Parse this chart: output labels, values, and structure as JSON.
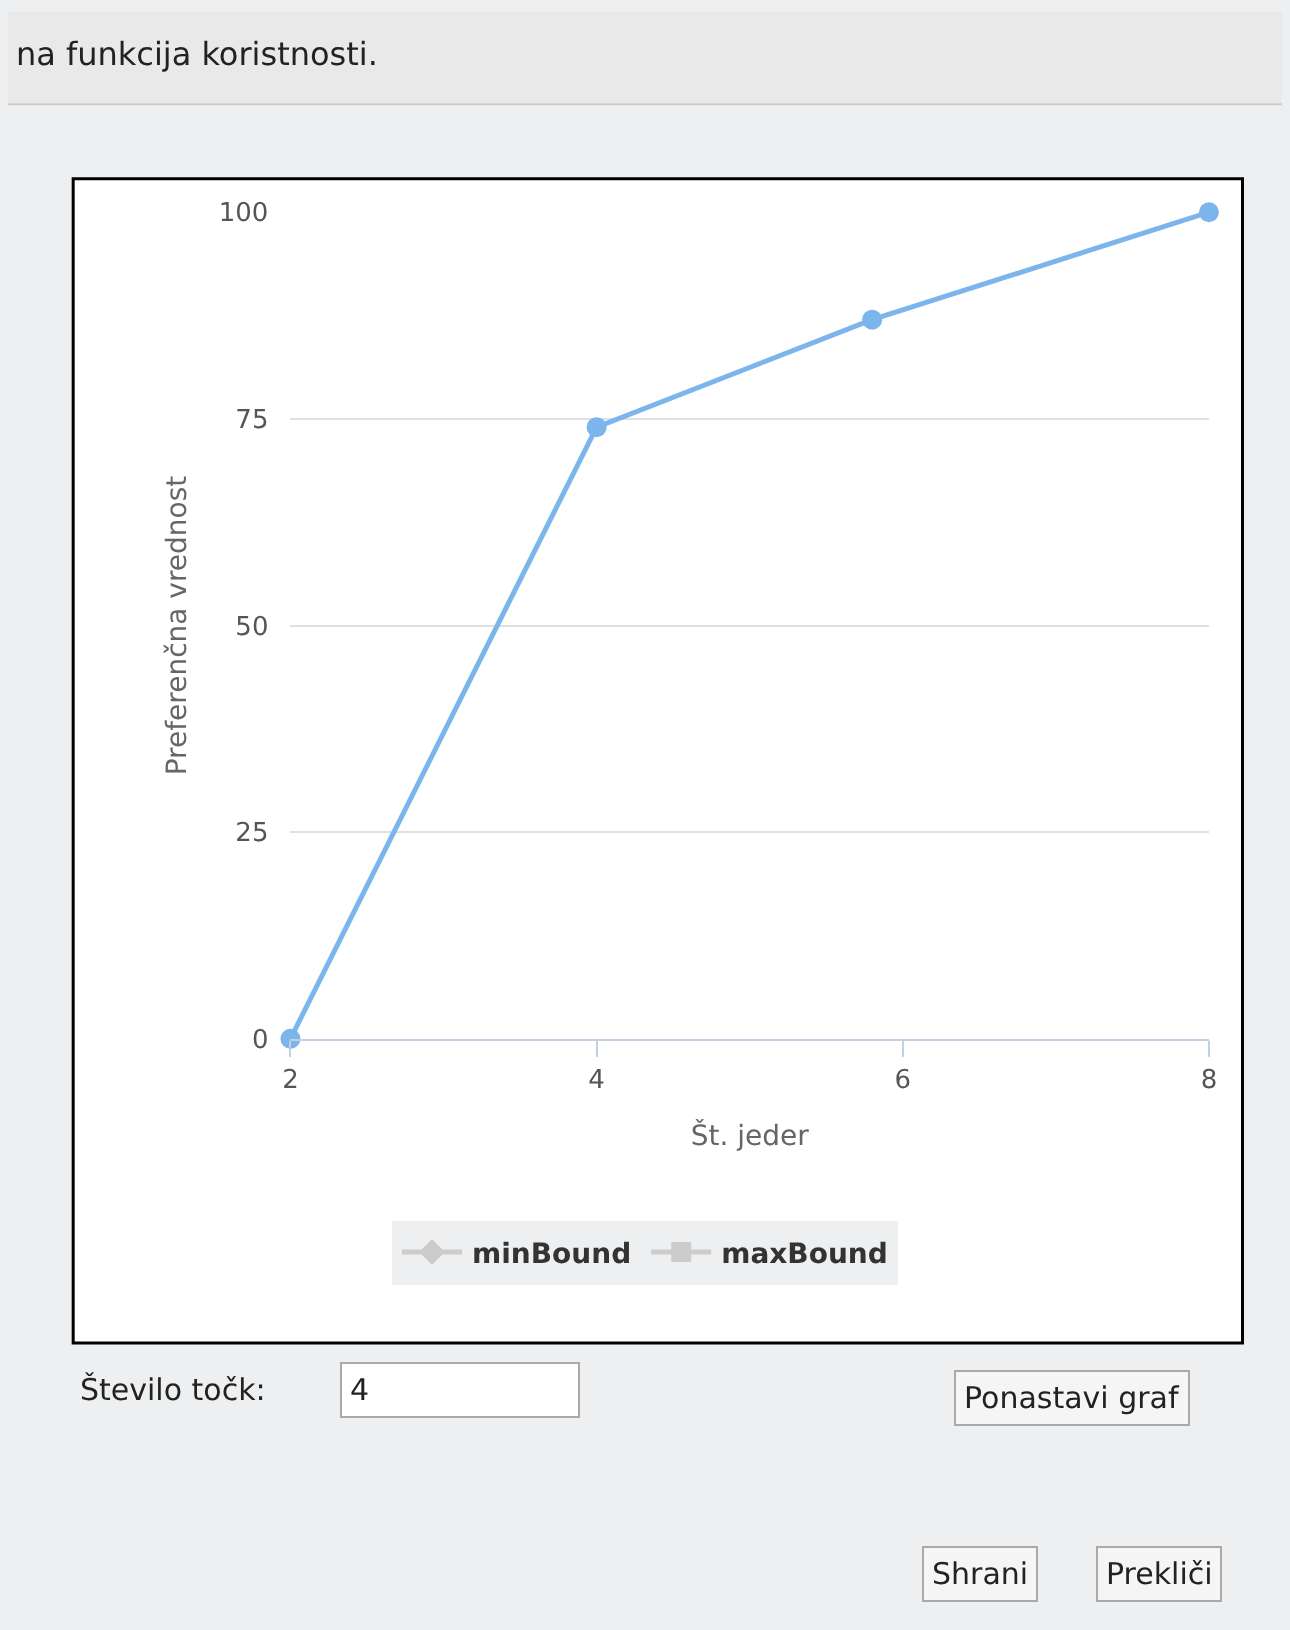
{
  "chart_data": {
    "type": "line",
    "title": "na funkcija koristnosti.",
    "xlabel": "Št. jeder",
    "ylabel": "Preferenčna vrednost",
    "x": [
      2,
      4,
      5.8,
      8
    ],
    "series": [
      {
        "color": "#7cb5ec",
        "values": [
          0,
          74,
          87,
          100
        ],
        "marker": "circle"
      },
      {
        "name": "minBound",
        "color": "#cccccc",
        "values": [
          null,
          null,
          null,
          null
        ],
        "marker": "diamond"
      },
      {
        "name": "maxBound",
        "color": "#cccccc",
        "values": [
          null,
          null,
          null,
          null
        ],
        "marker": "square"
      }
    ],
    "xlim": [
      2,
      8
    ],
    "xticks": [
      2,
      4,
      6,
      8
    ],
    "ylim": [
      0,
      100
    ],
    "yticks": [
      0,
      25,
      50,
      75,
      100
    ],
    "grid": "y",
    "legend": "bottom",
    "line_style": "solid",
    "annotations": [
      "Število točk:",
      "4",
      "Ponastavi graf",
      "Shrani",
      "Prekliči"
    ]
  }
}
